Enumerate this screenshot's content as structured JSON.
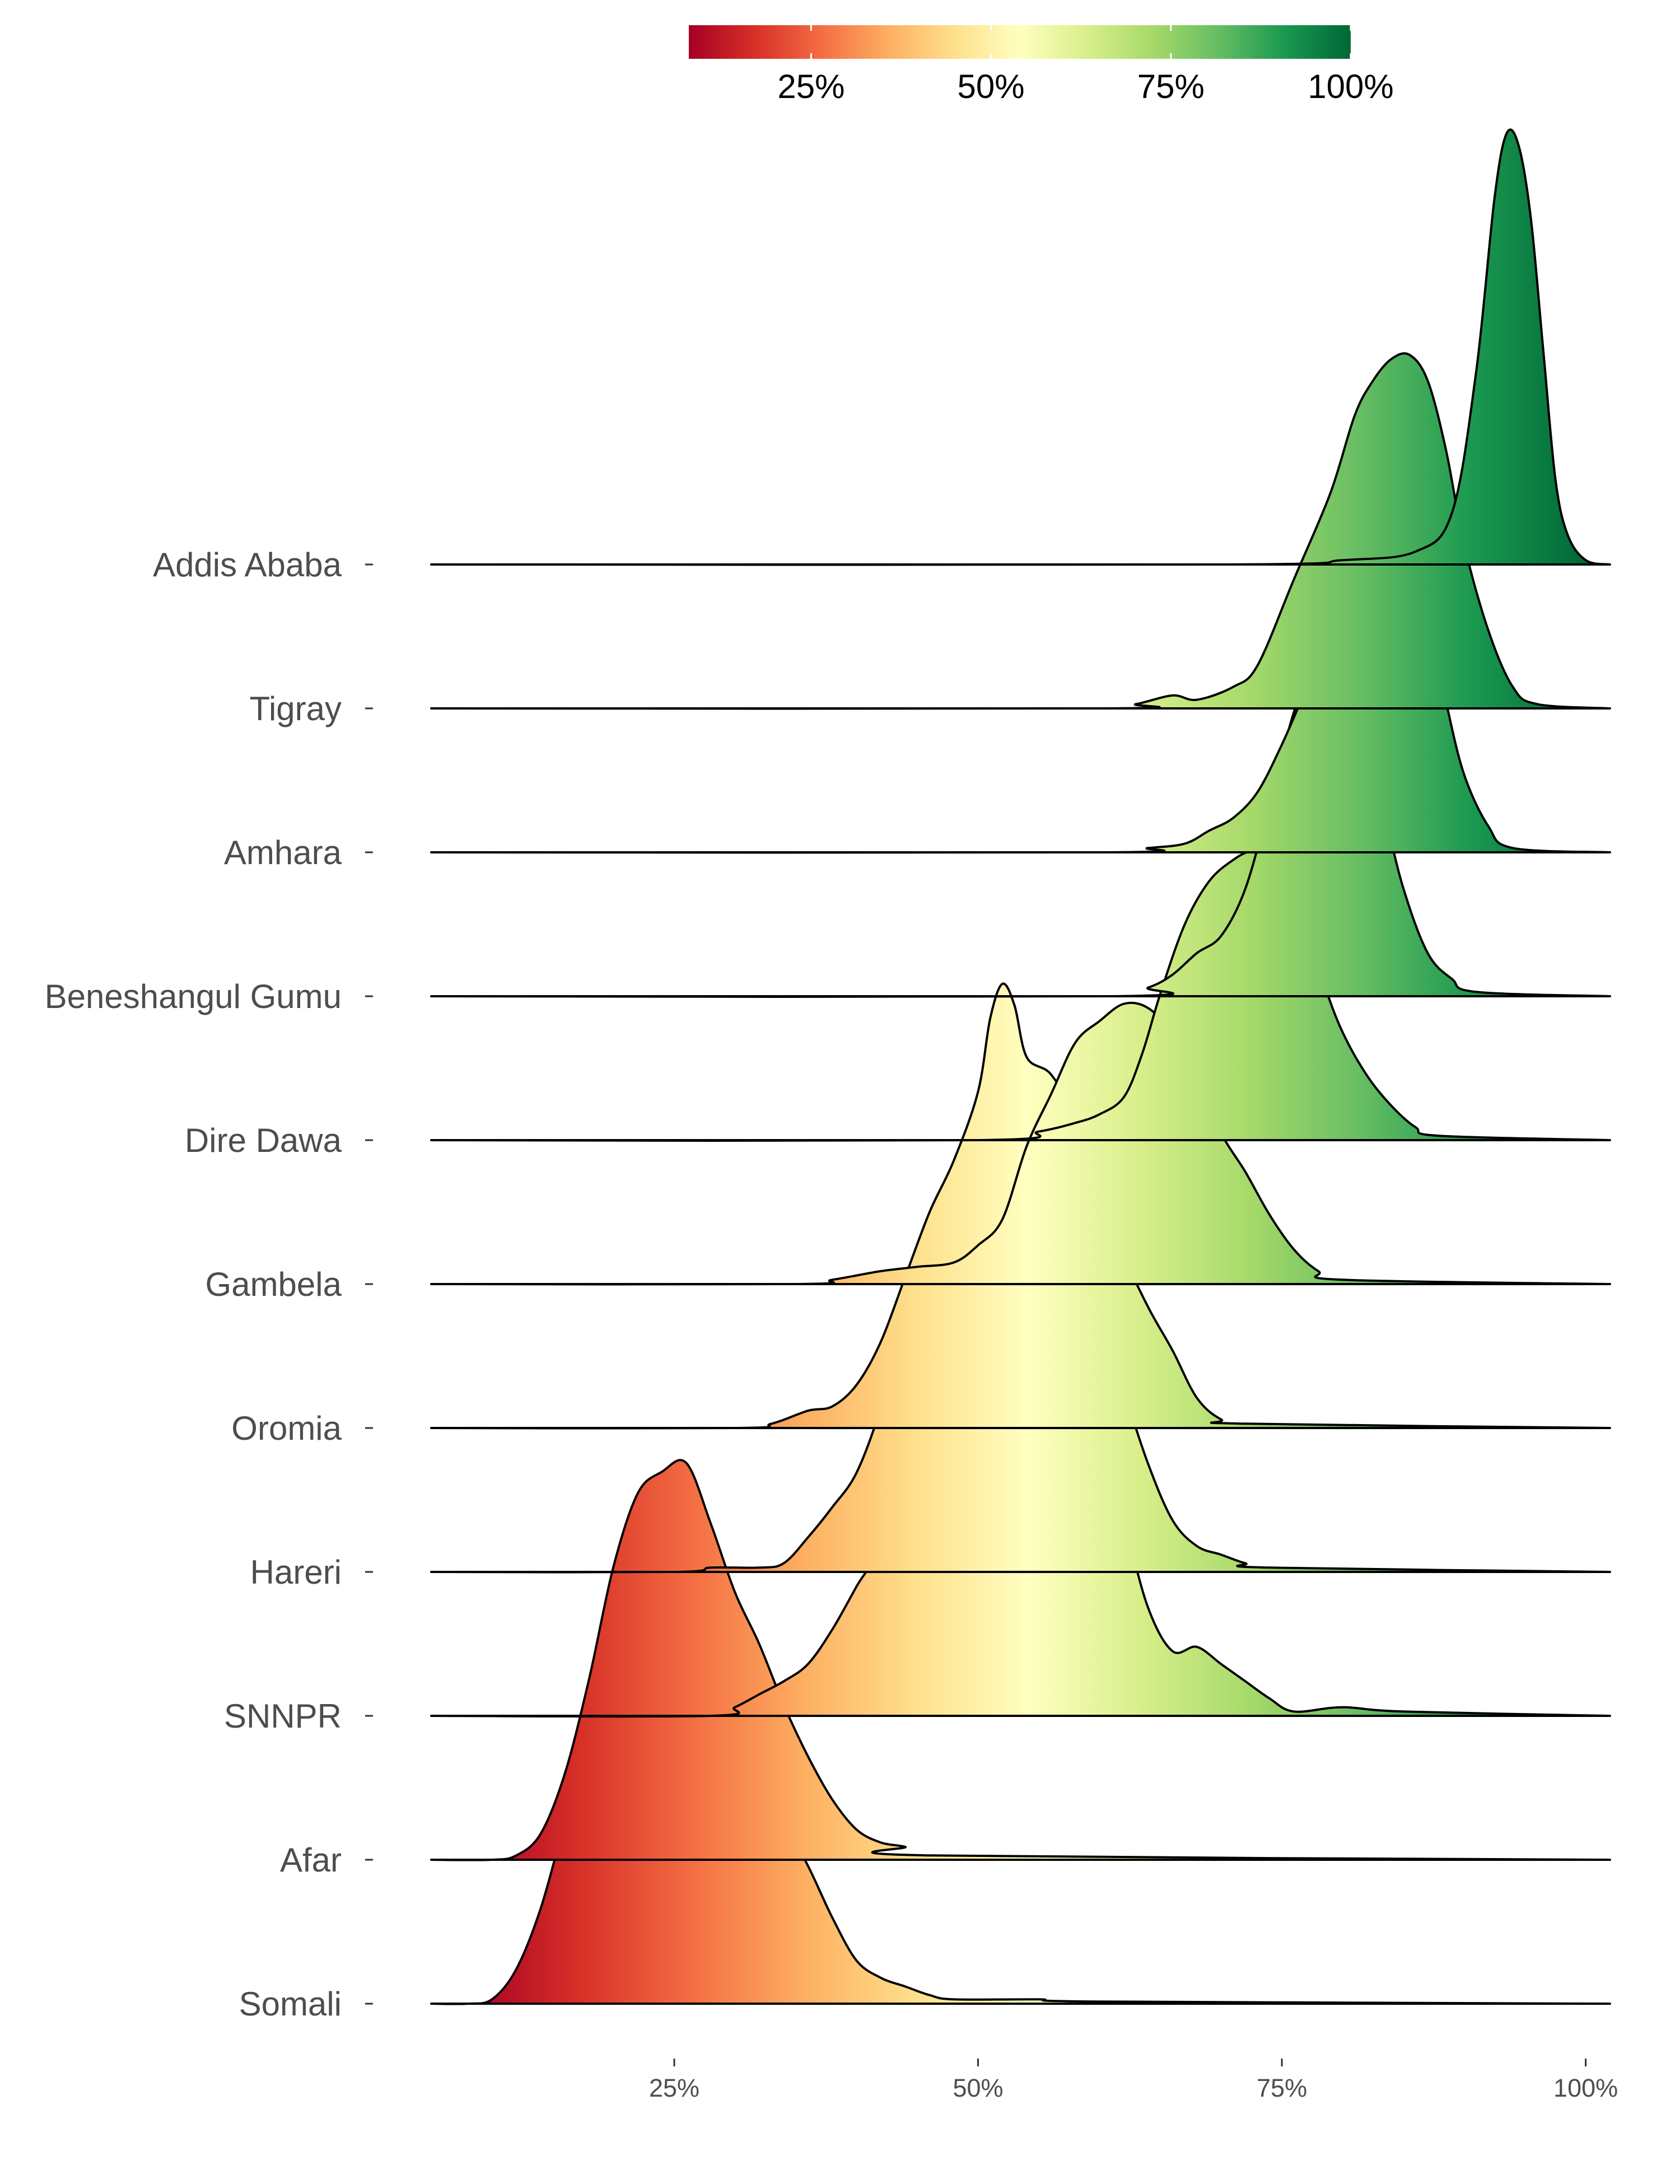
{
  "chart_data": {
    "type": "ridgeline",
    "title": "",
    "xlabel": "",
    "ylabel": "",
    "x_ticks": [
      "25%",
      "50%",
      "75%",
      "100%"
    ],
    "x_tick_values": [
      25,
      50,
      75,
      100
    ],
    "xlim": [
      5,
      102
    ],
    "grid": false,
    "legend": {
      "type": "colorbar",
      "placement": "top",
      "range": [
        8,
        100
      ],
      "ticks": [
        "25%",
        "50%",
        "75%",
        "100%"
      ],
      "tick_values": [
        25,
        50,
        75,
        100
      ],
      "palette": [
        "#a50026",
        "#d73027",
        "#f46d43",
        "#fdae61",
        "#fee08b",
        "#ffffbf",
        "#d9ef8b",
        "#a6d96a",
        "#66bd63",
        "#1a9850",
        "#006837"
      ]
    },
    "series": [
      {
        "name": "Addis Ababa",
        "points": [
          [
            5,
            0
          ],
          [
            70,
            0
          ],
          [
            80,
            0.01
          ],
          [
            86,
            0.03
          ],
          [
            89,
            0.12
          ],
          [
            91,
            0.45
          ],
          [
            92.5,
            0.85
          ],
          [
            93.5,
            1.0
          ],
          [
            94.5,
            0.97
          ],
          [
            95.5,
            0.8
          ],
          [
            96.5,
            0.5
          ],
          [
            97.5,
            0.2
          ],
          [
            98.5,
            0.07
          ],
          [
            100,
            0.01
          ],
          [
            102,
            0
          ]
        ]
      },
      {
        "name": "Tigray",
        "points": [
          [
            5,
            0
          ],
          [
            60,
            0
          ],
          [
            63,
            0.01
          ],
          [
            66,
            0.03
          ],
          [
            68,
            0.02
          ],
          [
            71,
            0.05
          ],
          [
            73,
            0.1
          ],
          [
            76,
            0.3
          ],
          [
            79,
            0.5
          ],
          [
            81,
            0.68
          ],
          [
            82.5,
            0.76
          ],
          [
            84,
            0.81
          ],
          [
            85.5,
            0.82
          ],
          [
            87,
            0.76
          ],
          [
            88.5,
            0.6
          ],
          [
            90,
            0.38
          ],
          [
            92,
            0.18
          ],
          [
            94,
            0.05
          ],
          [
            96,
            0.01
          ],
          [
            102,
            0
          ]
        ]
      },
      {
        "name": "Amhara",
        "points": [
          [
            5,
            0
          ],
          [
            60,
            0
          ],
          [
            64,
            0.01
          ],
          [
            67,
            0.02
          ],
          [
            69,
            0.05
          ],
          [
            71,
            0.08
          ],
          [
            73,
            0.14
          ],
          [
            75,
            0.25
          ],
          [
            77,
            0.38
          ],
          [
            79,
            0.52
          ],
          [
            81,
            0.66
          ],
          [
            82.5,
            0.74
          ],
          [
            84,
            0.76
          ],
          [
            85.5,
            0.7
          ],
          [
            87,
            0.55
          ],
          [
            88.5,
            0.35
          ],
          [
            90,
            0.18
          ],
          [
            92,
            0.06
          ],
          [
            94,
            0.01
          ],
          [
            102,
            0
          ]
        ]
      },
      {
        "name": "Beneshangul Gumu",
        "points": [
          [
            5,
            0
          ],
          [
            61,
            0
          ],
          [
            64,
            0.02
          ],
          [
            66,
            0.05
          ],
          [
            68,
            0.1
          ],
          [
            70,
            0.14
          ],
          [
            72,
            0.25
          ],
          [
            74,
            0.45
          ],
          [
            76,
            0.66
          ],
          [
            77.5,
            0.75
          ],
          [
            79,
            0.78
          ],
          [
            80.5,
            0.73
          ],
          [
            82,
            0.6
          ],
          [
            83.5,
            0.42
          ],
          [
            85,
            0.25
          ],
          [
            87,
            0.1
          ],
          [
            89,
            0.04
          ],
          [
            91,
            0.01
          ],
          [
            102,
            0
          ]
        ]
      },
      {
        "name": "Dire Dawa",
        "points": [
          [
            5,
            0
          ],
          [
            50,
            0
          ],
          [
            55,
            0.02
          ],
          [
            58,
            0.04
          ],
          [
            60,
            0.06
          ],
          [
            62,
            0.1
          ],
          [
            63.5,
            0.2
          ],
          [
            65,
            0.34
          ],
          [
            67,
            0.5
          ],
          [
            69,
            0.6
          ],
          [
            71,
            0.65
          ],
          [
            72.5,
            0.67
          ],
          [
            74,
            0.66
          ],
          [
            75.5,
            0.6
          ],
          [
            77,
            0.5
          ],
          [
            78.5,
            0.36
          ],
          [
            80,
            0.25
          ],
          [
            82,
            0.15
          ],
          [
            84,
            0.08
          ],
          [
            86,
            0.03
          ],
          [
            88,
            0.01
          ],
          [
            102,
            0
          ]
        ]
      },
      {
        "name": "Gambela",
        "points": [
          [
            5,
            0
          ],
          [
            35,
            0
          ],
          [
            38,
            0.01
          ],
          [
            42,
            0.03
          ],
          [
            45,
            0.04
          ],
          [
            48,
            0.05
          ],
          [
            50,
            0.09
          ],
          [
            52,
            0.15
          ],
          [
            54,
            0.32
          ],
          [
            56,
            0.44
          ],
          [
            58,
            0.56
          ],
          [
            60,
            0.61
          ],
          [
            62,
            0.65
          ],
          [
            64,
            0.64
          ],
          [
            66,
            0.58
          ],
          [
            68,
            0.48
          ],
          [
            70,
            0.35
          ],
          [
            72,
            0.26
          ],
          [
            74,
            0.16
          ],
          [
            76,
            0.08
          ],
          [
            78,
            0.03
          ],
          [
            80,
            0.01
          ],
          [
            102,
            0
          ]
        ]
      },
      {
        "name": "Oromia",
        "points": [
          [
            5,
            0
          ],
          [
            30,
            0
          ],
          [
            33,
            0.01
          ],
          [
            36,
            0.04
          ],
          [
            38,
            0.05
          ],
          [
            40,
            0.1
          ],
          [
            42,
            0.2
          ],
          [
            44,
            0.35
          ],
          [
            46,
            0.5
          ],
          [
            48,
            0.62
          ],
          [
            50,
            0.78
          ],
          [
            51,
            0.95
          ],
          [
            52,
            1.03
          ],
          [
            53,
            0.98
          ],
          [
            54,
            0.86
          ],
          [
            56,
            0.82
          ],
          [
            58,
            0.72
          ],
          [
            60,
            0.55
          ],
          [
            62,
            0.4
          ],
          [
            64,
            0.28
          ],
          [
            66,
            0.18
          ],
          [
            68,
            0.07
          ],
          [
            70,
            0.02
          ],
          [
            72,
            0.01
          ],
          [
            102,
            0
          ]
        ]
      },
      {
        "name": "Hareri",
        "points": [
          [
            5,
            0
          ],
          [
            25,
            0
          ],
          [
            28,
            0.01
          ],
          [
            32,
            0.01
          ],
          [
            34,
            0.02
          ],
          [
            36,
            0.08
          ],
          [
            38,
            0.15
          ],
          [
            40,
            0.23
          ],
          [
            42,
            0.38
          ],
          [
            44,
            0.58
          ],
          [
            46,
            0.72
          ],
          [
            48,
            0.8
          ],
          [
            50,
            0.85
          ],
          [
            52,
            0.9
          ],
          [
            54,
            0.9
          ],
          [
            56,
            0.85
          ],
          [
            58,
            0.68
          ],
          [
            60,
            0.6
          ],
          [
            62,
            0.42
          ],
          [
            64,
            0.25
          ],
          [
            66,
            0.12
          ],
          [
            68,
            0.06
          ],
          [
            70,
            0.04
          ],
          [
            72,
            0.02
          ],
          [
            74,
            0.01
          ],
          [
            102,
            0
          ]
        ]
      },
      {
        "name": "SNNPR",
        "points": [
          [
            5,
            0
          ],
          [
            28,
            0
          ],
          [
            30,
            0.02
          ],
          [
            32,
            0.05
          ],
          [
            34,
            0.08
          ],
          [
            36,
            0.12
          ],
          [
            38,
            0.2
          ],
          [
            40,
            0.3
          ],
          [
            42,
            0.4
          ],
          [
            44,
            0.62
          ],
          [
            46,
            0.7
          ],
          [
            48,
            0.68
          ],
          [
            50,
            0.72
          ],
          [
            52,
            0.64
          ],
          [
            54,
            0.7
          ],
          [
            56,
            0.68
          ],
          [
            58,
            0.58
          ],
          [
            60,
            0.62
          ],
          [
            62,
            0.45
          ],
          [
            64,
            0.25
          ],
          [
            66,
            0.15
          ],
          [
            68,
            0.16
          ],
          [
            70,
            0.12
          ],
          [
            72,
            0.08
          ],
          [
            74,
            0.04
          ],
          [
            76,
            0.01
          ],
          [
            80,
            0.02
          ],
          [
            85,
            0.01
          ],
          [
            102,
            0
          ]
        ]
      },
      {
        "name": "Afar",
        "points": [
          [
            5,
            0
          ],
          [
            10,
            0
          ],
          [
            12,
            0.01
          ],
          [
            14,
            0.06
          ],
          [
            16,
            0.2
          ],
          [
            18,
            0.42
          ],
          [
            20,
            0.68
          ],
          [
            22,
            0.85
          ],
          [
            24,
            0.9
          ],
          [
            26,
            0.92
          ],
          [
            28,
            0.78
          ],
          [
            30,
            0.62
          ],
          [
            32,
            0.5
          ],
          [
            34,
            0.36
          ],
          [
            36,
            0.24
          ],
          [
            38,
            0.14
          ],
          [
            40,
            0.07
          ],
          [
            42,
            0.04
          ],
          [
            44,
            0.03
          ],
          [
            46,
            0.01
          ],
          [
            102,
            0
          ]
        ]
      },
      {
        "name": "Somali",
        "points": [
          [
            5,
            0
          ],
          [
            8,
            0
          ],
          [
            10,
            0.01
          ],
          [
            12,
            0.08
          ],
          [
            14,
            0.22
          ],
          [
            16,
            0.42
          ],
          [
            18,
            0.6
          ],
          [
            20,
            0.8
          ],
          [
            22,
            0.9
          ],
          [
            24,
            0.95
          ],
          [
            26,
            0.9
          ],
          [
            28,
            0.78
          ],
          [
            30,
            0.62
          ],
          [
            32,
            0.48
          ],
          [
            34,
            0.42
          ],
          [
            36,
            0.32
          ],
          [
            38,
            0.2
          ],
          [
            40,
            0.1
          ],
          [
            42,
            0.06
          ],
          [
            44,
            0.04
          ],
          [
            46,
            0.02
          ],
          [
            48,
            0.01
          ],
          [
            55,
            0.01
          ],
          [
            60,
            0.005
          ],
          [
            102,
            0
          ]
        ]
      }
    ]
  }
}
